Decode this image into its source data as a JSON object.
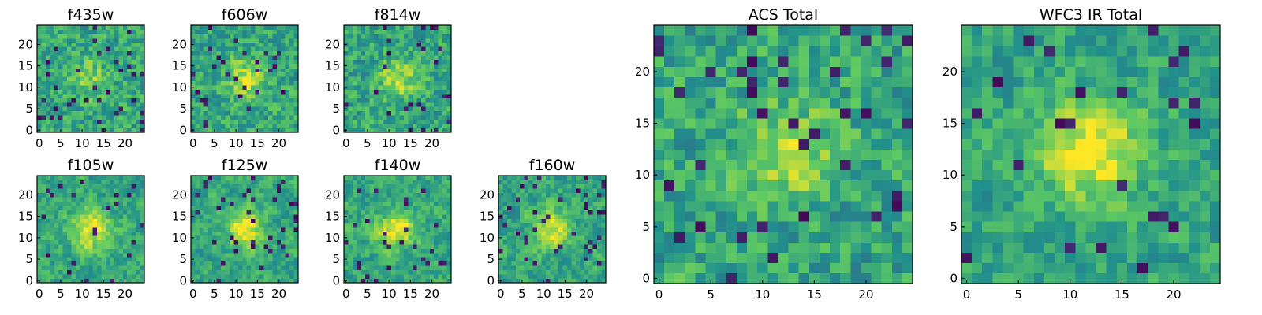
{
  "chart_data": {
    "type": "heatmap",
    "grid_size": 25,
    "colormap": "viridis",
    "colormap_stops": [
      "#440154",
      "#3b528b",
      "#21918c",
      "#5ec962",
      "#fde725"
    ],
    "panels": [
      {
        "id": "f435w",
        "title": "f435w",
        "seed": 435,
        "center_strength": 0.22,
        "smooth": 0.2,
        "dark_fraction": 0.06,
        "xticks": [
          "0",
          "5",
          "10",
          "15",
          "20"
        ],
        "yticks": [
          "0",
          "5",
          "10",
          "15",
          "20"
        ]
      },
      {
        "id": "f606w",
        "title": "f606w",
        "seed": 606,
        "center_strength": 0.3,
        "smooth": 0.25,
        "dark_fraction": 0.04,
        "xticks": [
          "0",
          "5",
          "10",
          "15",
          "20"
        ],
        "yticks": [
          "0",
          "5",
          "10",
          "15",
          "20"
        ]
      },
      {
        "id": "f814w",
        "title": "f814w",
        "seed": 814,
        "center_strength": 0.28,
        "smooth": 0.25,
        "dark_fraction": 0.05,
        "xticks": [
          "0",
          "5",
          "10",
          "15",
          "20"
        ],
        "yticks": [
          "0",
          "5",
          "10",
          "15",
          "20"
        ]
      },
      {
        "id": "f105w",
        "title": "f105w",
        "seed": 105,
        "center_strength": 0.42,
        "smooth": 0.45,
        "dark_fraction": 0.04,
        "xticks": [
          "0",
          "5",
          "10",
          "15",
          "20"
        ],
        "yticks": [
          "0",
          "5",
          "10",
          "15",
          "20"
        ]
      },
      {
        "id": "f125w",
        "title": "f125w",
        "seed": 125,
        "center_strength": 0.38,
        "smooth": 0.45,
        "dark_fraction": 0.05,
        "xticks": [
          "0",
          "5",
          "10",
          "15",
          "20"
        ],
        "yticks": [
          "0",
          "5",
          "10",
          "15",
          "20"
        ]
      },
      {
        "id": "f140w",
        "title": "f140w",
        "seed": 140,
        "center_strength": 0.4,
        "smooth": 0.45,
        "dark_fraction": 0.04,
        "xticks": [
          "0",
          "5",
          "10",
          "15",
          "20"
        ],
        "yticks": [
          "0",
          "5",
          "10",
          "15",
          "20"
        ]
      },
      {
        "id": "f160w",
        "title": "f160w",
        "seed": 160,
        "center_strength": 0.36,
        "smooth": 0.45,
        "dark_fraction": 0.05,
        "xticks": [
          "0",
          "5",
          "10",
          "15",
          "20"
        ],
        "yticks": [
          "0",
          "5",
          "10",
          "15",
          "20"
        ]
      },
      {
        "id": "acs-total",
        "title": "ACS Total",
        "seed": 901,
        "center_strength": 0.3,
        "smooth": 0.2,
        "dark_fraction": 0.04,
        "xticks": [
          "0",
          "5",
          "10",
          "15",
          "20"
        ],
        "yticks": [
          "0",
          "5",
          "10",
          "15",
          "20"
        ]
      },
      {
        "id": "wfc3-ir-total",
        "title": "WFC3 IR Total",
        "seed": 902,
        "center_strength": 0.45,
        "smooth": 0.4,
        "dark_fraction": 0.04,
        "xticks": [
          "0",
          "5",
          "10",
          "15",
          "20"
        ],
        "yticks": [
          "0",
          "5",
          "10",
          "15",
          "20"
        ]
      }
    ]
  }
}
